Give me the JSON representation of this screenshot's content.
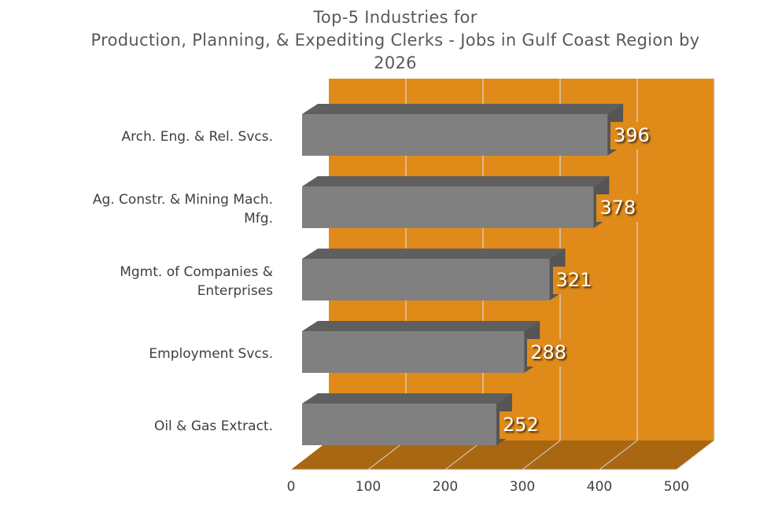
{
  "chart_data": {
    "type": "bar",
    "orientation": "horizontal",
    "style": "3d",
    "title": "Top-5 Industries for\nProduction, Planning, & Expediting Clerks - Jobs in Gulf Coast Region by 2026",
    "title_lines": [
      "Top-5 Industries for",
      "Production, Planning, & Expediting Clerks - Jobs in Gulf Coast Region by",
      "2026"
    ],
    "categories": [
      "Arch. Eng. & Rel. Svcs.",
      "Ag. Constr. & Mining Mach. Mfg.",
      "Mgmt. of Companies & Enterprises",
      "Employment Svcs.",
      "Oil & Gas Extract."
    ],
    "category_lines": [
      [
        "Arch. Eng. & Rel. Svcs."
      ],
      [
        "Ag. Constr. & Mining Mach.",
        "Mfg."
      ],
      [
        "Mgmt. of Companies &",
        "Enterprises"
      ],
      [
        "Employment Svcs."
      ],
      [
        "Oil & Gas Extract."
      ]
    ],
    "values": [
      396,
      378,
      321,
      288,
      252
    ],
    "data_labels": [
      "396",
      "378",
      "321",
      "288",
      "252"
    ],
    "xlim": [
      0,
      500
    ],
    "x_ticks": [
      "0",
      "100",
      "200",
      "300",
      "400",
      "500"
    ],
    "xlabel": "",
    "ylabel": "",
    "grid": true,
    "legend": "none",
    "colors": {
      "bar": "#808080",
      "bar_top": "#5f5f5f",
      "bar_side": "#555555",
      "wall": "#e08a1a",
      "floor": "#a96712",
      "gridline": "#d9d9d9"
    }
  }
}
